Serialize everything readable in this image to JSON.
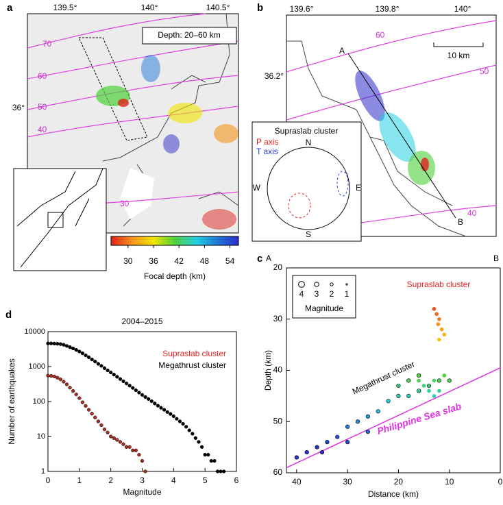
{
  "panels": {
    "a": {
      "label": "a",
      "xticks": [
        "139.5°",
        "140°",
        "140.5°"
      ],
      "yticks": [
        "36°"
      ],
      "contour_labels": [
        "70",
        "60",
        "50",
        "40",
        "30"
      ],
      "depth_box": "Depth: 20–60 km",
      "colorbar": {
        "lim": [
          26,
          56
        ],
        "ticks": [
          30,
          36,
          42,
          48,
          54
        ],
        "label": "Focal depth (km)",
        "colors": [
          "#e0201b",
          "#f7941d",
          "#f2e600",
          "#4fd13a",
          "#22d0e0",
          "#1f78d6",
          "#2c2cc8"
        ]
      }
    },
    "b": {
      "label": "b",
      "xticks": [
        "139.6°",
        "139.8°",
        "140°"
      ],
      "yticks": [
        "36.2°"
      ],
      "contour_labels": [
        "60",
        "50",
        "40"
      ],
      "scale": "10 km",
      "start": "A",
      "end": "B",
      "inset": {
        "title": "Supraslab cluster",
        "p_axis": "P axis",
        "t_axis": "T axis",
        "n": "N",
        "e": "E",
        "s": "S",
        "w": "W"
      }
    }
  },
  "chart_data": [
    {
      "type": "scatter",
      "label": "c",
      "start": "A",
      "end": "B",
      "xlabel": "Distance (km)",
      "ylabel": "Depth (km)",
      "xlim": [
        42,
        0
      ],
      "xticks": [
        40,
        30,
        20,
        10,
        0
      ],
      "ylim": [
        20,
        60
      ],
      "yticks": [
        20,
        30,
        40,
        50,
        60
      ],
      "legend": {
        "title": "Magnitude",
        "sizes": [
          4,
          3,
          2,
          1
        ]
      },
      "series": [
        {
          "name": "Supraslab cluster",
          "color": "#e8201f",
          "x": [
            13,
            12.5,
            12,
            12.2,
            11.5,
            11,
            12,
            13,
            14,
            15,
            12,
            13,
            14,
            16,
            11
          ],
          "values": [
            28,
            29,
            30,
            31,
            32,
            33,
            34,
            42,
            43,
            43,
            44,
            45,
            44,
            42,
            41
          ]
        },
        {
          "name": "Megathrust cluster",
          "color": "#000000",
          "x": [
            40,
            38,
            36,
            34,
            32,
            30,
            28,
            26,
            24,
            22,
            20,
            18,
            16,
            14,
            12,
            10,
            26,
            30,
            35,
            20,
            18,
            16
          ],
          "values": [
            57,
            56,
            55,
            54,
            53,
            51,
            50,
            49,
            48,
            46,
            45,
            45,
            44,
            43,
            42,
            42,
            52,
            54,
            56,
            43,
            42,
            41
          ]
        }
      ],
      "slab": {
        "name": "Philippine Sea slab",
        "color": "#e033e0",
        "x": [
          42,
          0
        ],
        "values": [
          59,
          39.5
        ]
      }
    },
    {
      "type": "scatter",
      "label": "d",
      "title": "2004–2015",
      "xlabel": "Magnitude",
      "ylabel": "Number of earthquakes",
      "log_y": true,
      "xlim": [
        0,
        6
      ],
      "xticks": [
        0,
        1,
        2,
        3,
        4,
        5,
        6
      ],
      "ylim": [
        1,
        10000
      ],
      "yticks": [
        1,
        10,
        100,
        1000,
        10000
      ],
      "series": [
        {
          "name": "Supraslab cluster",
          "color": "#a33020",
          "x": [
            0,
            0.1,
            0.2,
            0.3,
            0.4,
            0.5,
            0.6,
            0.7,
            0.8,
            0.9,
            1,
            1.1,
            1.2,
            1.3,
            1.4,
            1.5,
            1.6,
            1.7,
            1.8,
            1.9,
            2,
            2.1,
            2.2,
            2.3,
            2.4,
            2.5,
            2.6,
            2.7,
            2.8,
            2.9,
            3,
            3.1
          ],
          "values": [
            550,
            540,
            520,
            480,
            430,
            370,
            310,
            250,
            200,
            160,
            125,
            95,
            75,
            58,
            45,
            35,
            27,
            21,
            16,
            13,
            10,
            9,
            8,
            7,
            6,
            5,
            5,
            4,
            4,
            3,
            2,
            1
          ]
        },
        {
          "name": "Megathrust cluster",
          "color": "#000000",
          "x": [
            0,
            0.1,
            0.2,
            0.3,
            0.4,
            0.5,
            0.6,
            0.7,
            0.8,
            0.9,
            1,
            1.1,
            1.2,
            1.3,
            1.4,
            1.5,
            1.6,
            1.7,
            1.8,
            1.9,
            2,
            2.1,
            2.2,
            2.3,
            2.4,
            2.5,
            2.6,
            2.7,
            2.8,
            2.9,
            3,
            3.1,
            3.2,
            3.3,
            3.4,
            3.5,
            3.6,
            3.7,
            3.8,
            3.9,
            4,
            4.1,
            4.2,
            4.3,
            4.4,
            4.5,
            4.6,
            4.7,
            4.8,
            4.9,
            5,
            5.1,
            5.2,
            5.3,
            5.4,
            5.5,
            5.6
          ],
          "values": [
            4600,
            4600,
            4550,
            4500,
            4400,
            4200,
            3900,
            3600,
            3300,
            3000,
            2700,
            2400,
            2100,
            1850,
            1600,
            1400,
            1200,
            1050,
            900,
            780,
            680,
            590,
            510,
            440,
            380,
            330,
            285,
            245,
            210,
            180,
            155,
            135,
            118,
            102,
            88,
            76,
            66,
            58,
            50,
            44,
            38,
            32,
            27,
            23,
            19,
            15,
            12,
            9,
            7,
            5,
            3,
            3,
            2,
            2,
            1,
            1,
            1
          ]
        }
      ]
    }
  ]
}
